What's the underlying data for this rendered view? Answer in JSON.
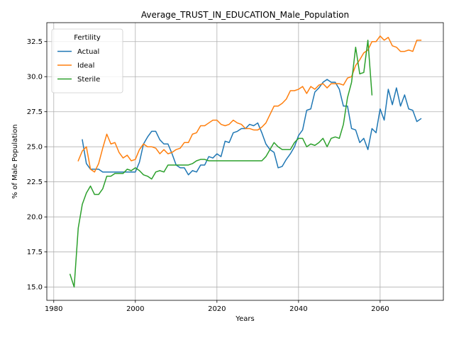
{
  "chart_data": {
    "type": "line",
    "title": "Average_TRUST_IN_EDUCATION_Male_Population",
    "xlabel": "Years",
    "ylabel": "% of Male Population",
    "xlim": [
      1978.3,
      2075.5
    ],
    "ylim": [
      14.05,
      33.85
    ],
    "xticks": [
      1980,
      2000,
      2020,
      2040,
      2060
    ],
    "yticks": [
      15.0,
      17.5,
      20.0,
      22.5,
      25.0,
      27.5,
      30.0,
      32.5
    ],
    "xtick_labels": [
      "1980",
      "2000",
      "2020",
      "2040",
      "2060"
    ],
    "ytick_labels": [
      "15.0",
      "17.5",
      "20.0",
      "22.5",
      "25.0",
      "27.5",
      "30.0",
      "32.5"
    ],
    "grid": true,
    "legend": {
      "title": "Fertility",
      "position": "upper-left"
    },
    "series": [
      {
        "name": "Actual",
        "color": "#1f77b4",
        "x": [
          1987,
          1988,
          1989,
          1990,
          1991,
          1992,
          1993,
          1994,
          1995,
          1996,
          1997,
          1998,
          1999,
          2000,
          2001,
          2002,
          2003,
          2004,
          2005,
          2006,
          2007,
          2008,
          2009,
          2010,
          2011,
          2012,
          2013,
          2014,
          2015,
          2016,
          2017,
          2018,
          2019,
          2020,
          2021,
          2022,
          2023,
          2024,
          2025,
          2026,
          2027,
          2028,
          2029,
          2030,
          2031,
          2032,
          2033,
          2034,
          2035,
          2036,
          2037,
          2038,
          2039,
          2040,
          2041,
          2042,
          2043,
          2044,
          2045,
          2046,
          2047,
          2048,
          2049,
          2050,
          2051,
          2052,
          2053,
          2054,
          2055,
          2056,
          2057,
          2058,
          2059,
          2060,
          2061,
          2062,
          2063,
          2064,
          2065,
          2066,
          2067,
          2068,
          2069,
          2070
        ],
        "values": [
          25.5,
          23.8,
          23.4,
          23.4,
          23.4,
          23.2,
          23.2,
          23.2,
          23.2,
          23.2,
          23.2,
          23.2,
          23.2,
          23.2,
          23.9,
          25.2,
          25.7,
          26.1,
          26.1,
          25.5,
          25.2,
          25.2,
          24.5,
          23.7,
          23.5,
          23.5,
          23.0,
          23.3,
          23.2,
          23.7,
          23.7,
          24.3,
          24.2,
          24.5,
          24.3,
          25.4,
          25.3,
          26.0,
          26.1,
          26.3,
          26.3,
          26.6,
          26.5,
          26.7,
          26.0,
          25.2,
          24.8,
          24.6,
          23.5,
          23.6,
          24.1,
          24.5,
          25.0,
          25.8,
          26.2,
          27.6,
          27.7,
          28.9,
          29.2,
          29.6,
          29.8,
          29.6,
          29.6,
          29.1,
          27.9,
          27.9,
          26.3,
          26.2,
          25.3,
          25.6,
          24.8,
          26.3,
          26.0,
          27.7,
          26.9,
          29.1,
          28.0,
          29.2,
          27.9,
          28.7,
          27.7,
          27.6,
          26.8,
          27.0
        ]
      },
      {
        "name": "Ideal",
        "color": "#ff7f0e",
        "x": [
          1986,
          1987,
          1988,
          1989,
          1990,
          1991,
          1992,
          1993,
          1994,
          1995,
          1996,
          1997,
          1998,
          1999,
          2000,
          2001,
          2002,
          2003,
          2004,
          2005,
          2006,
          2007,
          2008,
          2009,
          2010,
          2011,
          2012,
          2013,
          2014,
          2015,
          2016,
          2017,
          2018,
          2019,
          2020,
          2021,
          2022,
          2023,
          2024,
          2025,
          2026,
          2027,
          2028,
          2029,
          2030,
          2031,
          2032,
          2033,
          2034,
          2035,
          2036,
          2037,
          2038,
          2039,
          2040,
          2041,
          2042,
          2043,
          2044,
          2045,
          2046,
          2047,
          2048,
          2049,
          2050,
          2051,
          2052,
          2053,
          2054,
          2055,
          2056,
          2057,
          2058,
          2059,
          2060,
          2061,
          2062,
          2063,
          2064,
          2065,
          2066,
          2067,
          2068,
          2069,
          2070
        ],
        "values": [
          24.0,
          24.7,
          25.0,
          23.4,
          23.2,
          23.8,
          24.9,
          25.9,
          25.2,
          25.3,
          24.6,
          24.2,
          24.4,
          24.0,
          24.1,
          24.8,
          25.2,
          25.0,
          25.0,
          24.9,
          24.5,
          24.8,
          24.5,
          24.6,
          24.8,
          24.9,
          25.3,
          25.3,
          25.9,
          26.0,
          26.5,
          26.5,
          26.7,
          26.9,
          26.9,
          26.6,
          26.5,
          26.6,
          26.9,
          26.7,
          26.6,
          26.3,
          26.3,
          26.2,
          26.2,
          26.4,
          26.7,
          27.3,
          27.9,
          27.9,
          28.1,
          28.4,
          29.0,
          29.0,
          29.1,
          29.3,
          28.8,
          29.3,
          29.1,
          29.4,
          29.5,
          29.2,
          29.5,
          29.5,
          29.5,
          29.4,
          29.9,
          30.0,
          30.8,
          31.2,
          31.7,
          31.9,
          32.5,
          32.5,
          32.9,
          32.6,
          32.8,
          32.2,
          32.1,
          31.8,
          31.8,
          31.9,
          31.8,
          32.6,
          32.6
        ]
      },
      {
        "name": "Sterile",
        "color": "#2ca02c",
        "x": [
          1984,
          1985,
          1986,
          1987,
          1988,
          1989,
          1990,
          1991,
          1992,
          1993,
          1994,
          1995,
          1996,
          1997,
          1998,
          1999,
          2000,
          2001,
          2002,
          2003,
          2004,
          2005,
          2006,
          2007,
          2008,
          2009,
          2010,
          2011,
          2012,
          2013,
          2014,
          2015,
          2016,
          2017,
          2018,
          2019,
          2020,
          2021,
          2022,
          2023,
          2024,
          2025,
          2026,
          2027,
          2028,
          2029,
          2030,
          2031,
          2032,
          2033,
          2034,
          2035,
          2036,
          2037,
          2038,
          2039,
          2040,
          2041,
          2042,
          2043,
          2044,
          2045,
          2046,
          2047,
          2048,
          2049,
          2050,
          2051,
          2052,
          2053,
          2054,
          2055,
          2056,
          2057,
          2058
        ],
        "values": [
          15.9,
          15.0,
          19.2,
          20.9,
          21.7,
          22.2,
          21.6,
          21.6,
          22.0,
          22.9,
          22.9,
          23.1,
          23.1,
          23.1,
          23.4,
          23.3,
          23.5,
          23.3,
          23.0,
          22.9,
          22.7,
          23.2,
          23.3,
          23.2,
          23.7,
          23.7,
          23.7,
          23.7,
          23.7,
          23.7,
          23.8,
          24.0,
          24.1,
          24.1,
          24.0,
          24.0,
          24.0,
          24.0,
          24.0,
          24.0,
          24.0,
          24.0,
          24.0,
          24.0,
          24.0,
          24.0,
          24.0,
          24.0,
          24.3,
          24.8,
          25.3,
          25.0,
          24.8,
          24.8,
          24.8,
          25.3,
          25.6,
          25.6,
          25.0,
          25.2,
          25.1,
          25.3,
          25.6,
          25.0,
          25.6,
          25.7,
          25.6,
          26.6,
          28.5,
          29.6,
          32.1,
          30.2,
          30.3,
          32.6,
          28.7
        ]
      }
    ]
  }
}
